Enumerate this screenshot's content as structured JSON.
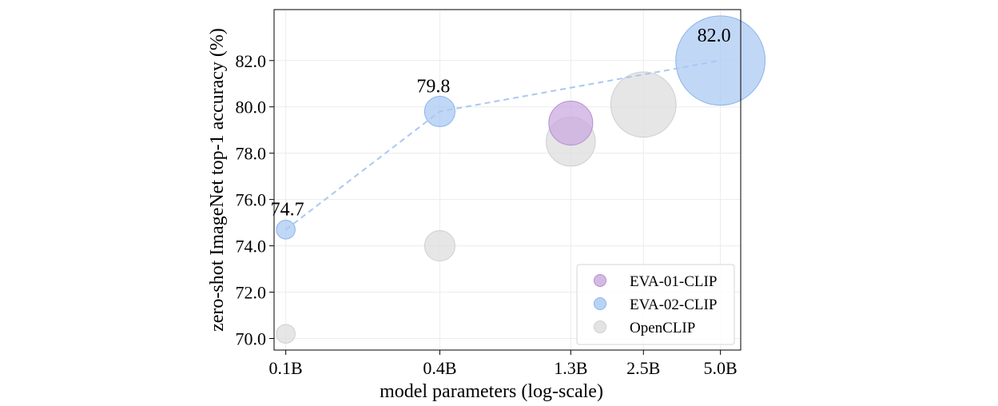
{
  "chart_data": {
    "type": "scatter",
    "title": "",
    "xlabel": "model parameters (log-scale)",
    "ylabel": "zero-shot ImageNet top-1 accuracy (%)",
    "x_scale": "log",
    "x_ticks": [
      0.1,
      0.4,
      1.3,
      2.5,
      5.0
    ],
    "x_tick_labels": [
      "0.1B",
      "0.4B",
      "1.3B",
      "2.5B",
      "5.0B"
    ],
    "y_ticks": [
      70.0,
      72.0,
      74.0,
      76.0,
      78.0,
      80.0,
      82.0
    ],
    "y_tick_labels": [
      "70.0",
      "72.0",
      "74.0",
      "76.0",
      "78.0",
      "80.0",
      "82.0"
    ],
    "xlim": [
      0.09,
      6.0
    ],
    "ylim": [
      69.5,
      84.2
    ],
    "grid": true,
    "legend_position": "bottom-right",
    "series": [
      {
        "name": "EVA-01-CLIP",
        "color": "#c9a8e0",
        "stroke": "#b48fd0",
        "points": [
          {
            "x": 1.3,
            "y": 79.3,
            "size": 1.0
          }
        ]
      },
      {
        "name": "EVA-02-CLIP",
        "color": "#a9c8f2",
        "stroke": "#8ab4ec",
        "connected": true,
        "points": [
          {
            "x": 0.1,
            "y": 74.7,
            "size": 0.1,
            "label": "74.7"
          },
          {
            "x": 0.4,
            "y": 79.8,
            "size": 0.4,
            "label": "79.8"
          },
          {
            "x": 5.0,
            "y": 82.0,
            "size": 5.0,
            "label": "82.0"
          }
        ]
      },
      {
        "name": "OpenCLIP",
        "color": "#dcdcdc",
        "stroke": "#cfcfcf",
        "points": [
          {
            "x": 0.1,
            "y": 70.2,
            "size": 0.1
          },
          {
            "x": 0.4,
            "y": 74.0,
            "size": 0.4
          },
          {
            "x": 1.3,
            "y": 78.5,
            "size": 1.3
          },
          {
            "x": 2.5,
            "y": 80.1,
            "size": 2.5
          }
        ]
      }
    ]
  }
}
